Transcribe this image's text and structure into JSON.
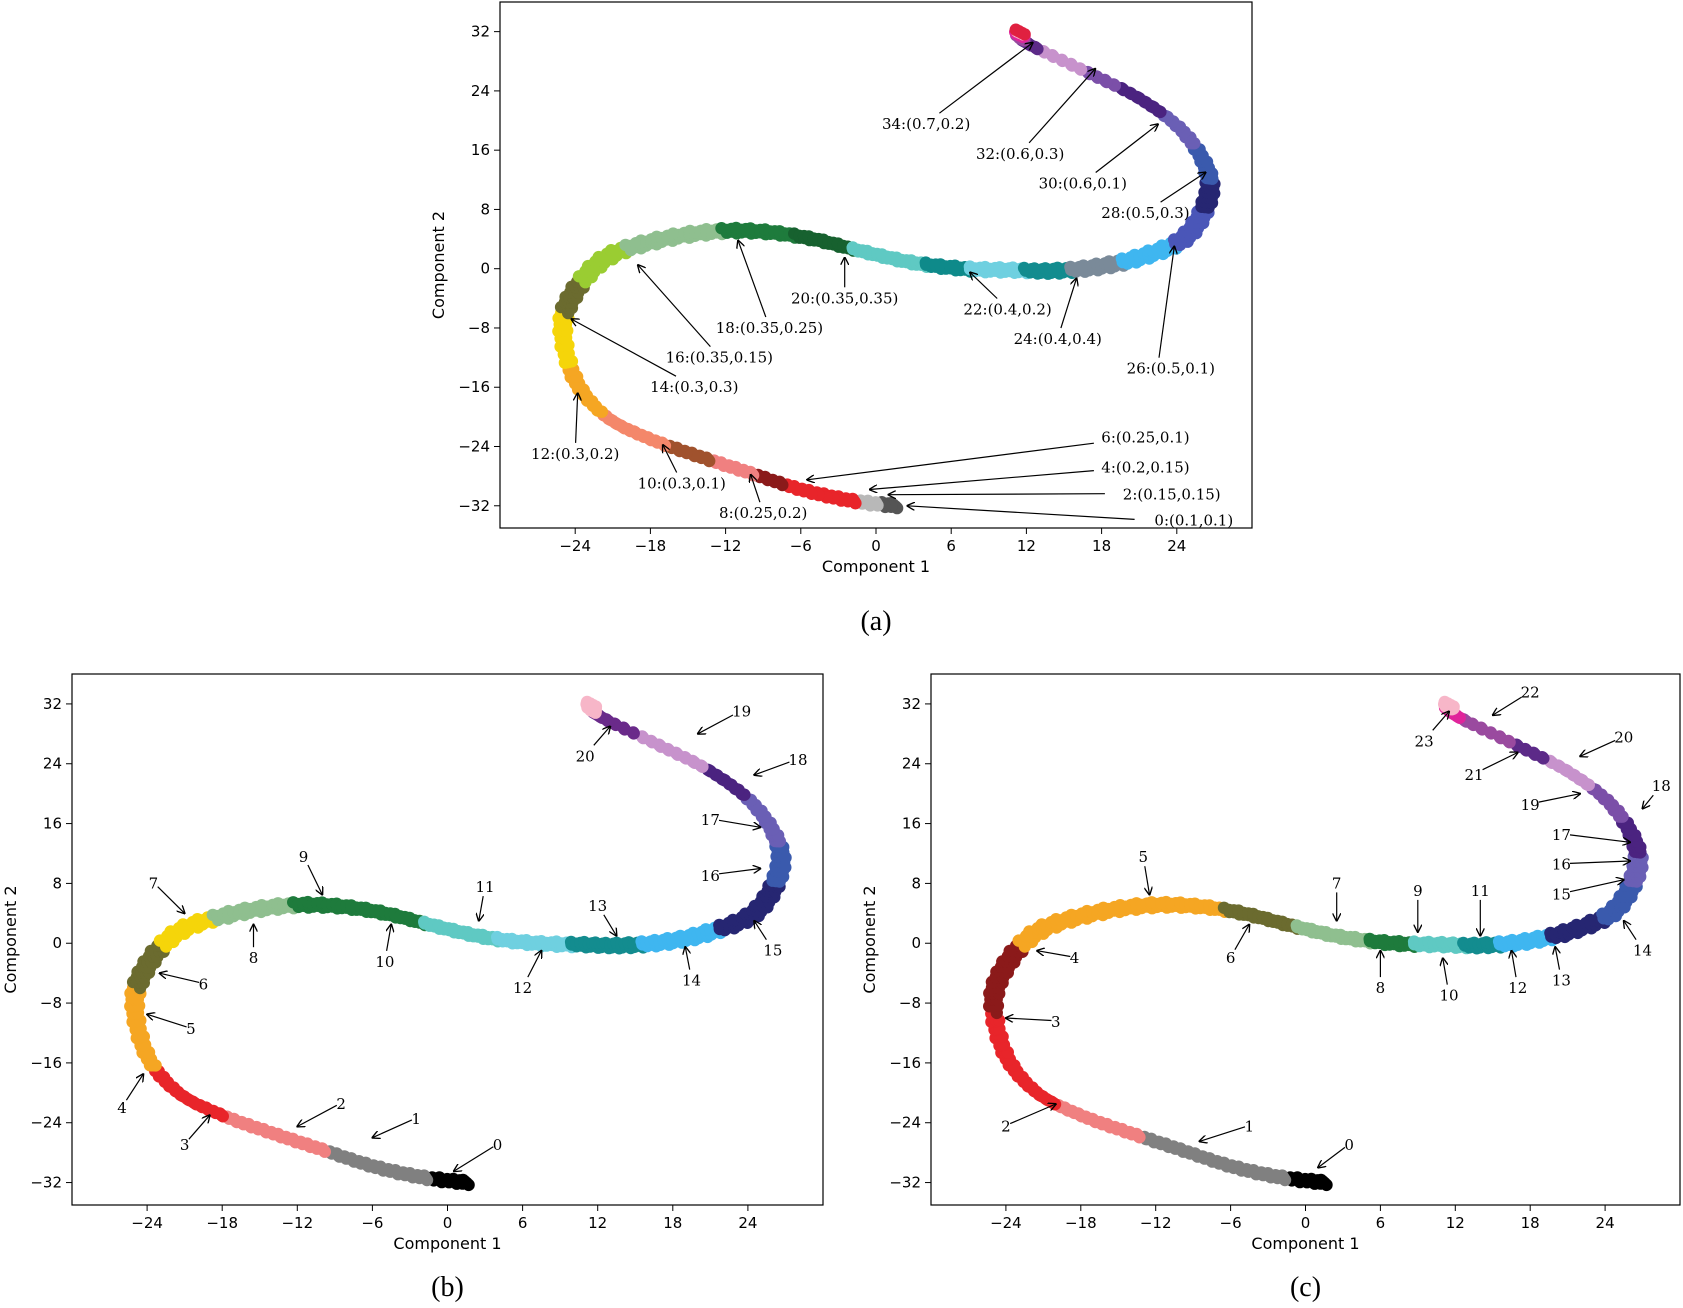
{
  "chart_data": [
    {
      "id": "a",
      "type": "scatter",
      "caption": "(a)",
      "xlabel": "Component 1",
      "ylabel": "Component 2",
      "xlim": [
        -30,
        30
      ],
      "ylim": [
        -35,
        36
      ],
      "xticks": [
        -24,
        -18,
        -12,
        -6,
        0,
        6,
        12,
        18,
        24
      ],
      "yticks": [
        -32,
        -24,
        -16,
        -8,
        0,
        8,
        16,
        24,
        32
      ],
      "grid": false,
      "segments": [
        {
          "from": 0.0,
          "to": 0.015,
          "color": "#555555"
        },
        {
          "from": 0.015,
          "to": 0.03,
          "color": "#b8b8b8"
        },
        {
          "from": 0.03,
          "to": 0.08,
          "color": "#e8252a"
        },
        {
          "from": 0.08,
          "to": 0.1,
          "color": "#8b1a1a"
        },
        {
          "from": 0.1,
          "to": 0.13,
          "color": "#f08080"
        },
        {
          "from": 0.13,
          "to": 0.16,
          "color": "#a0522d"
        },
        {
          "from": 0.16,
          "to": 0.21,
          "color": "#f4876a"
        },
        {
          "from": 0.21,
          "to": 0.25,
          "color": "#f5a623"
        },
        {
          "from": 0.25,
          "to": 0.29,
          "color": "#f5d50a"
        },
        {
          "from": 0.29,
          "to": 0.32,
          "color": "#6b6b2f"
        },
        {
          "from": 0.32,
          "to": 0.36,
          "color": "#9acd32"
        },
        {
          "from": 0.36,
          "to": 0.42,
          "color": "#8fbf8f"
        },
        {
          "from": 0.42,
          "to": 0.47,
          "color": "#1e7b3c"
        },
        {
          "from": 0.47,
          "to": 0.51,
          "color": "#17612f"
        },
        {
          "from": 0.51,
          "to": 0.56,
          "color": "#5fc9c3"
        },
        {
          "from": 0.56,
          "to": 0.59,
          "color": "#0e8a8a"
        },
        {
          "from": 0.59,
          "to": 0.63,
          "color": "#6fd0e0"
        },
        {
          "from": 0.63,
          "to": 0.67,
          "color": "#138c8f"
        },
        {
          "from": 0.67,
          "to": 0.71,
          "color": "#7a8a99"
        },
        {
          "from": 0.71,
          "to": 0.75,
          "color": "#3fb6f0"
        },
        {
          "from": 0.75,
          "to": 0.79,
          "color": "#4a56b8"
        },
        {
          "from": 0.79,
          "to": 0.82,
          "color": "#262672"
        },
        {
          "from": 0.82,
          "to": 0.85,
          "color": "#3a5aad"
        },
        {
          "from": 0.85,
          "to": 0.88,
          "color": "#6a5fb5"
        },
        {
          "from": 0.88,
          "to": 0.91,
          "color": "#4b2380"
        },
        {
          "from": 0.91,
          "to": 0.93,
          "color": "#7b4fa8"
        },
        {
          "from": 0.93,
          "to": 0.955,
          "color": "#c792cc"
        },
        {
          "from": 0.955,
          "to": 0.97,
          "color": "#5c2a88"
        },
        {
          "from": 0.97,
          "to": 0.98,
          "color": "#9a4a9f"
        },
        {
          "from": 0.98,
          "to": 0.99,
          "color": "#e0259b"
        },
        {
          "from": 0.99,
          "to": 0.995,
          "color": "#f7b6c8"
        },
        {
          "from": 0.995,
          "to": 1.0,
          "color": "#e02040"
        }
      ],
      "annotations": [
        {
          "text": "0:(0.1,0.1)",
          "x": 28.5,
          "y": -34.0,
          "tx": 2.5,
          "ty": -32.0,
          "anchor": "end"
        },
        {
          "text": "2:(0.15,0.15)",
          "x": 27.5,
          "y": -30.5,
          "tx": 1.0,
          "ty": -30.5,
          "anchor": "end"
        },
        {
          "text": "4:(0.2,0.15)",
          "x": 21.5,
          "y": -26.8,
          "tx": -0.5,
          "ty": -29.8,
          "anchor": "middle"
        },
        {
          "text": "6:(0.25,0.1)",
          "x": 21.5,
          "y": -22.8,
          "tx": -5.5,
          "ty": -28.5,
          "anchor": "middle"
        },
        {
          "text": "8:(0.25,0.2)",
          "x": -9.0,
          "y": -33.0,
          "tx": -10.0,
          "ty": -27.8,
          "anchor": "middle"
        },
        {
          "text": "10:(0.3,0.1)",
          "x": -15.5,
          "y": -29.0,
          "tx": -17.0,
          "ty": -23.8,
          "anchor": "middle"
        },
        {
          "text": "12:(0.3,0.2)",
          "x": -24.0,
          "y": -25.0,
          "tx": -23.8,
          "ty": -16.8,
          "anchor": "middle"
        },
        {
          "text": "14:(0.3,0.3)",
          "x": -14.5,
          "y": -16.0,
          "tx": -24.3,
          "ty": -6.8,
          "anchor": "middle"
        },
        {
          "text": "16:(0.35,0.15)",
          "x": -12.5,
          "y": -12.0,
          "tx": -19.0,
          "ty": 0.5,
          "anchor": "middle"
        },
        {
          "text": "18:(0.35,0.25)",
          "x": -8.5,
          "y": -8.0,
          "tx": -11.0,
          "ty": 3.8,
          "anchor": "middle"
        },
        {
          "text": "20:(0.35,0.35)",
          "x": -2.5,
          "y": -4.0,
          "tx": -2.5,
          "ty": 1.5,
          "anchor": "middle"
        },
        {
          "text": "22:(0.4,0.2)",
          "x": 10.5,
          "y": -5.5,
          "tx": 7.5,
          "ty": -0.5,
          "anchor": "middle"
        },
        {
          "text": "24:(0.4,0.4)",
          "x": 14.5,
          "y": -9.5,
          "tx": 16.0,
          "ty": -1.3,
          "anchor": "middle"
        },
        {
          "text": "26:(0.5,0.1)",
          "x": 20.0,
          "y": -13.5,
          "tx": 23.8,
          "ty": 3.0,
          "anchor": "start"
        },
        {
          "text": "28:(0.5,0.3)",
          "x": 21.5,
          "y": 7.5,
          "tx": 26.3,
          "ty": 13.0,
          "anchor": "middle"
        },
        {
          "text": "30:(0.6,0.1)",
          "x": 16.5,
          "y": 11.5,
          "tx": 22.5,
          "ty": 19.5,
          "anchor": "middle"
        },
        {
          "text": "32:(0.6,0.3)",
          "x": 11.5,
          "y": 15.5,
          "tx": 17.5,
          "ty": 27.0,
          "anchor": "middle"
        },
        {
          "text": "34:(0.7,0.2)",
          "x": 4.0,
          "y": 19.5,
          "tx": 12.5,
          "ty": 30.5,
          "anchor": "middle"
        }
      ]
    },
    {
      "id": "b",
      "type": "scatter",
      "caption": "(b)",
      "xlabel": "Component 1",
      "ylabel": "Component 2",
      "xlim": [
        -30,
        30
      ],
      "ylim": [
        -35,
        36
      ],
      "xticks": [
        -24,
        -18,
        -12,
        -6,
        0,
        6,
        12,
        18,
        24
      ],
      "yticks": [
        -32,
        -24,
        -16,
        -8,
        0,
        8,
        16,
        24,
        32
      ],
      "grid": false,
      "segments": [
        {
          "from": 0.0,
          "to": 0.03,
          "color": "#000000"
        },
        {
          "from": 0.03,
          "to": 0.1,
          "color": "#808080"
        },
        {
          "from": 0.1,
          "to": 0.17,
          "color": "#f08080"
        },
        {
          "from": 0.17,
          "to": 0.23,
          "color": "#e8252a"
        },
        {
          "from": 0.23,
          "to": 0.29,
          "color": "#f5a623"
        },
        {
          "from": 0.29,
          "to": 0.33,
          "color": "#6b6b2f"
        },
        {
          "from": 0.33,
          "to": 0.37,
          "color": "#f5d50a"
        },
        {
          "from": 0.37,
          "to": 0.42,
          "color": "#8fbf8f"
        },
        {
          "from": 0.42,
          "to": 0.51,
          "color": "#1e7b3c"
        },
        {
          "from": 0.51,
          "to": 0.56,
          "color": "#5fc9c3"
        },
        {
          "from": 0.56,
          "to": 0.61,
          "color": "#6fd0e0"
        },
        {
          "from": 0.61,
          "to": 0.67,
          "color": "#138c8f"
        },
        {
          "from": 0.67,
          "to": 0.73,
          "color": "#3fb6f0"
        },
        {
          "from": 0.73,
          "to": 0.79,
          "color": "#262672"
        },
        {
          "from": 0.79,
          "to": 0.83,
          "color": "#3a5aad"
        },
        {
          "from": 0.83,
          "to": 0.87,
          "color": "#6a5fb5"
        },
        {
          "from": 0.87,
          "to": 0.9,
          "color": "#4b2380"
        },
        {
          "from": 0.9,
          "to": 0.94,
          "color": "#c792cc"
        },
        {
          "from": 0.94,
          "to": 0.97,
          "color": "#6a2a8a"
        },
        {
          "from": 0.97,
          "to": 1.0,
          "color": "#f7b6c8"
        }
      ],
      "annotations": [
        {
          "text": "0",
          "x": 4.0,
          "y": -27.0,
          "tx": 0.5,
          "ty": -30.5,
          "anchor": "middle"
        },
        {
          "text": "1",
          "x": -2.5,
          "y": -23.5,
          "tx": -6.0,
          "ty": -26.0,
          "anchor": "middle"
        },
        {
          "text": "2",
          "x": -8.5,
          "y": -21.5,
          "tx": -12.0,
          "ty": -24.5,
          "anchor": "middle"
        },
        {
          "text": "3",
          "x": -21.0,
          "y": -27.0,
          "tx": -19.0,
          "ty": -23.0,
          "anchor": "middle"
        },
        {
          "text": "4",
          "x": -26.0,
          "y": -22.0,
          "tx": -24.3,
          "ty": -17.5,
          "anchor": "middle"
        },
        {
          "text": "5",
          "x": -20.5,
          "y": -11.5,
          "tx": -24.0,
          "ty": -9.5,
          "anchor": "middle"
        },
        {
          "text": "6",
          "x": -19.5,
          "y": -5.5,
          "tx": -23.0,
          "ty": -4.0,
          "anchor": "middle"
        },
        {
          "text": "7",
          "x": -23.5,
          "y": 8.0,
          "tx": -21.0,
          "ty": 4.0,
          "anchor": "middle"
        },
        {
          "text": "8",
          "x": -15.5,
          "y": -2.0,
          "tx": -15.5,
          "ty": 2.5,
          "anchor": "middle"
        },
        {
          "text": "9",
          "x": -11.5,
          "y": 11.5,
          "tx": -10.0,
          "ty": 6.5,
          "anchor": "middle"
        },
        {
          "text": "10",
          "x": -5.0,
          "y": -2.5,
          "tx": -4.5,
          "ty": 2.5,
          "anchor": "middle"
        },
        {
          "text": "11",
          "x": 3.0,
          "y": 7.5,
          "tx": 2.5,
          "ty": 3.0,
          "anchor": "middle"
        },
        {
          "text": "12",
          "x": 6.0,
          "y": -6.0,
          "tx": 7.5,
          "ty": -1.0,
          "anchor": "middle"
        },
        {
          "text": "13",
          "x": 12.0,
          "y": 5.0,
          "tx": 13.5,
          "ty": 1.0,
          "anchor": "middle"
        },
        {
          "text": "14",
          "x": 19.5,
          "y": -5.0,
          "tx": 19.0,
          "ty": -0.5,
          "anchor": "middle"
        },
        {
          "text": "15",
          "x": 26.0,
          "y": -1.0,
          "tx": 24.5,
          "ty": 3.0,
          "anchor": "middle"
        },
        {
          "text": "16",
          "x": 21.0,
          "y": 9.0,
          "tx": 25.0,
          "ty": 10.0,
          "anchor": "middle"
        },
        {
          "text": "17",
          "x": 21.0,
          "y": 16.5,
          "tx": 25.0,
          "ty": 15.5,
          "anchor": "middle"
        },
        {
          "text": "18",
          "x": 28.0,
          "y": 24.5,
          "tx": 24.5,
          "ty": 22.5,
          "anchor": "middle"
        },
        {
          "text": "19",
          "x": 23.5,
          "y": 31.0,
          "tx": 20.0,
          "ty": 28.0,
          "anchor": "middle"
        },
        {
          "text": "20",
          "x": 11.0,
          "y": 25.0,
          "tx": 13.0,
          "ty": 29.0,
          "anchor": "middle"
        }
      ]
    },
    {
      "id": "c",
      "type": "scatter",
      "caption": "(c)",
      "xlabel": "Component 1",
      "ylabel": "Component 2",
      "xlim": [
        -30,
        30
      ],
      "ylim": [
        -35,
        36
      ],
      "xticks": [
        -24,
        -18,
        -12,
        -6,
        0,
        6,
        12,
        18,
        24
      ],
      "yticks": [
        -32,
        -24,
        -16,
        -8,
        0,
        8,
        16,
        24,
        32
      ],
      "grid": false,
      "segments": [
        {
          "from": 0.0,
          "to": 0.03,
          "color": "#000000"
        },
        {
          "from": 0.03,
          "to": 0.13,
          "color": "#808080"
        },
        {
          "from": 0.13,
          "to": 0.19,
          "color": "#f08080"
        },
        {
          "from": 0.19,
          "to": 0.27,
          "color": "#e8252a"
        },
        {
          "from": 0.27,
          "to": 0.33,
          "color": "#8b1a1a"
        },
        {
          "from": 0.33,
          "to": 0.47,
          "color": "#f5a623"
        },
        {
          "from": 0.47,
          "to": 0.52,
          "color": "#6b6b2f"
        },
        {
          "from": 0.52,
          "to": 0.57,
          "color": "#8fbf8f"
        },
        {
          "from": 0.57,
          "to": 0.6,
          "color": "#1e7b3c"
        },
        {
          "from": 0.6,
          "to": 0.64,
          "color": "#5fc9c3"
        },
        {
          "from": 0.64,
          "to": 0.67,
          "color": "#138c8f"
        },
        {
          "from": 0.67,
          "to": 0.71,
          "color": "#3fb6f0"
        },
        {
          "from": 0.71,
          "to": 0.75,
          "color": "#262672"
        },
        {
          "from": 0.75,
          "to": 0.79,
          "color": "#3a5aad"
        },
        {
          "from": 0.79,
          "to": 0.82,
          "color": "#6a5fb5"
        },
        {
          "from": 0.82,
          "to": 0.85,
          "color": "#4b2380"
        },
        {
          "from": 0.85,
          "to": 0.88,
          "color": "#7b4fa8"
        },
        {
          "from": 0.88,
          "to": 0.91,
          "color": "#c792cc"
        },
        {
          "from": 0.91,
          "to": 0.93,
          "color": "#5c2a88"
        },
        {
          "from": 0.93,
          "to": 0.96,
          "color": "#9a4a9f"
        },
        {
          "from": 0.96,
          "to": 0.98,
          "color": "#e0259b"
        },
        {
          "from": 0.98,
          "to": 1.0,
          "color": "#f7b6c8"
        }
      ],
      "annotations": [
        {
          "text": "0",
          "x": 3.5,
          "y": -27.0,
          "tx": 1.0,
          "ty": -30.0,
          "anchor": "middle"
        },
        {
          "text": "1",
          "x": -4.5,
          "y": -24.5,
          "tx": -8.5,
          "ty": -26.5,
          "anchor": "middle"
        },
        {
          "text": "2",
          "x": -24.0,
          "y": -24.5,
          "tx": -20.0,
          "ty": -21.5,
          "anchor": "middle"
        },
        {
          "text": "3",
          "x": -20.0,
          "y": -10.5,
          "tx": -24.0,
          "ty": -10.0,
          "anchor": "middle"
        },
        {
          "text": "4",
          "x": -18.5,
          "y": -2.0,
          "tx": -21.5,
          "ty": -1.0,
          "anchor": "middle"
        },
        {
          "text": "5",
          "x": -13.0,
          "y": 11.5,
          "tx": -12.5,
          "ty": 6.5,
          "anchor": "middle"
        },
        {
          "text": "6",
          "x": -6.0,
          "y": -2.0,
          "tx": -4.5,
          "ty": 2.5,
          "anchor": "middle"
        },
        {
          "text": "7",
          "x": 2.5,
          "y": 8.0,
          "tx": 2.5,
          "ty": 3.0,
          "anchor": "middle"
        },
        {
          "text": "8",
          "x": 6.0,
          "y": -6.0,
          "tx": 6.0,
          "ty": -1.0,
          "anchor": "middle"
        },
        {
          "text": "9",
          "x": 9.0,
          "y": 7.0,
          "tx": 9.0,
          "ty": 1.5,
          "anchor": "middle"
        },
        {
          "text": "10",
          "x": 11.5,
          "y": -7.0,
          "tx": 11.0,
          "ty": -2.0,
          "anchor": "middle"
        },
        {
          "text": "11",
          "x": 14.0,
          "y": 7.0,
          "tx": 14.0,
          "ty": 1.0,
          "anchor": "middle"
        },
        {
          "text": "12",
          "x": 17.0,
          "y": -6.0,
          "tx": 16.5,
          "ty": -1.0,
          "anchor": "middle"
        },
        {
          "text": "13",
          "x": 20.5,
          "y": -5.0,
          "tx": 20.0,
          "ty": -0.5,
          "anchor": "middle"
        },
        {
          "text": "14",
          "x": 27.0,
          "y": -1.0,
          "tx": 25.5,
          "ty": 3.0,
          "anchor": "middle"
        },
        {
          "text": "15",
          "x": 20.5,
          "y": 6.5,
          "tx": 25.5,
          "ty": 8.5,
          "anchor": "middle"
        },
        {
          "text": "16",
          "x": 20.5,
          "y": 10.5,
          "tx": 26.0,
          "ty": 11.0,
          "anchor": "middle"
        },
        {
          "text": "17",
          "x": 20.5,
          "y": 14.5,
          "tx": 26.0,
          "ty": 13.5,
          "anchor": "middle"
        },
        {
          "text": "18",
          "x": 28.5,
          "y": 21.0,
          "tx": 27.0,
          "ty": 18.0,
          "anchor": "middle"
        },
        {
          "text": "19",
          "x": 18.0,
          "y": 18.5,
          "tx": 22.0,
          "ty": 20.0,
          "anchor": "middle"
        },
        {
          "text": "20",
          "x": 25.5,
          "y": 27.5,
          "tx": 22.0,
          "ty": 25.0,
          "anchor": "middle"
        },
        {
          "text": "21",
          "x": 13.5,
          "y": 22.5,
          "tx": 17.0,
          "ty": 25.5,
          "anchor": "middle"
        },
        {
          "text": "22",
          "x": 18.0,
          "y": 33.5,
          "tx": 15.0,
          "ty": 30.5,
          "anchor": "middle"
        },
        {
          "text": "23",
          "x": 9.5,
          "y": 27.0,
          "tx": 11.5,
          "ty": 31.0,
          "anchor": "middle"
        }
      ]
    }
  ]
}
